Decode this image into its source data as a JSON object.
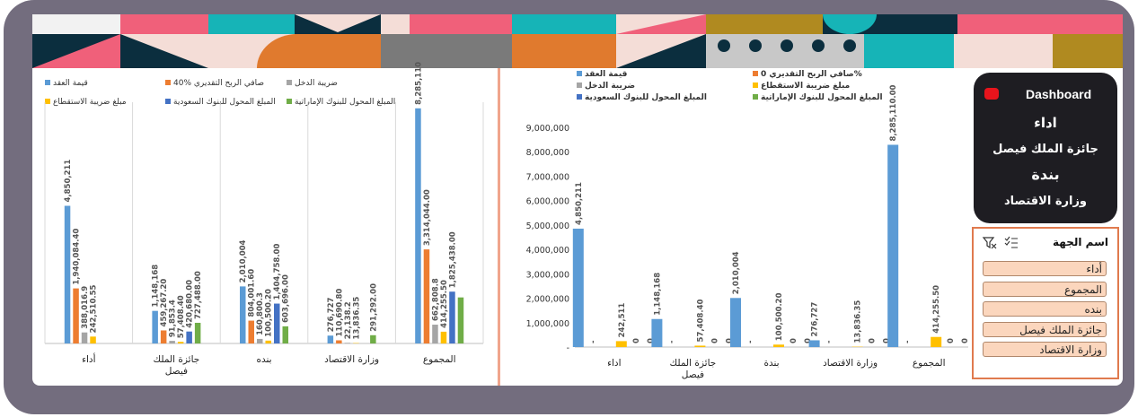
{
  "colors": {
    "frame": "#736d7e",
    "series": [
      "#5b9bd5",
      "#ed7d31",
      "#a5a5a5",
      "#ffc000",
      "#4472c4",
      "#70ad47"
    ],
    "dashboard_bg": "#1e1d22",
    "dashboard_dot": "#e8141c",
    "slicer_border": "#e07a4e",
    "slicer_item_bg": "#fbd6bd",
    "divider": "#f0a58c"
  },
  "dashboard": {
    "title": "Dashboard",
    "items": [
      "اداء",
      "جائزة الملك فيصل",
      "بندة",
      "وزارة الاقتصاد"
    ]
  },
  "slicer": {
    "title": "اسم الجهة",
    "items": [
      "أداء",
      "المجموع",
      "بنده",
      "جائزة الملك فيصل",
      "وزارة الاقتصاد"
    ]
  },
  "chart_data": [
    {
      "type": "bar",
      "categories": [
        "أداء",
        "جائزة الملك فيصل",
        "بنده",
        "وزارة الاقتصاد",
        "المجموع"
      ],
      "legend": [
        "قيمة العقد",
        "صافي الربح التقديري %40",
        "ضريبة الدخل",
        "مبلغ ضريبة الاستقطاع",
        "المبلغ المحول للبنوك السعودية",
        "المبلغ المحول للبنوك الإماراتية"
      ],
      "series": [
        {
          "name": "قيمة العقد",
          "values": [
            4850211,
            1148168,
            2010004,
            276727,
            8285110
          ],
          "labels": [
            "4,850,211",
            "1,148,168",
            "2,010,004",
            "276,727",
            "8,285,110"
          ]
        },
        {
          "name": "صافي الربح التقديري %40",
          "values": [
            1940084.4,
            459267.2,
            804001.6,
            110690.8,
            3314044
          ],
          "labels": [
            "1,940,084.40",
            "459,267.20",
            "804,001.60",
            "110,690.80",
            "3,314,044.00"
          ]
        },
        {
          "name": "ضريبة الدخل",
          "values": [
            388016.9,
            91853.4,
            160800.3,
            22138.2,
            662808.8
          ],
          "labels": [
            "388,016.9",
            "91,853.4",
            "160,800.3",
            "22,138.2",
            "662,808.8"
          ]
        },
        {
          "name": "مبلغ ضريبة الاستقطاع",
          "values": [
            242510.55,
            57408.4,
            100500.2,
            13836.35,
            414255.5
          ],
          "labels": [
            "242,510.55",
            "57,408.40",
            "100,500.20",
            "13,836.35",
            "414,255.50"
          ]
        },
        {
          "name": "المبلغ المحول للبنوك السعودية",
          "values": [
            0,
            420680,
            1404758,
            0,
            1825438
          ],
          "labels": [
            "",
            "420,680.00",
            "1,404,758.00",
            "",
            "1,825,438.00"
          ]
        },
        {
          "name": "المبلغ المحول للبنوك الإماراتية",
          "values": [
            0,
            727488,
            603696,
            291292,
            1622476
          ],
          "labels": [
            "",
            "727,488.00",
            "603,696.00",
            "291,292.00",
            ""
          ]
        }
      ],
      "ylim": [
        0,
        8500000
      ],
      "grid": false,
      "legend_position": "top"
    },
    {
      "type": "bar",
      "categories": [
        "اداء",
        "جائزة الملك فيصل",
        "بندة",
        "وزارة الاقتصاد",
        "المجموع"
      ],
      "legend": [
        "قيمة العقد",
        "صافي الربح التقديري 0%",
        "ضريبة الدخل",
        "مبلغ ضريبة الاستقطاع",
        "المبلغ المحول للبنوك السعودية",
        "المبلغ المحول للبنوك الإماراتية"
      ],
      "series": [
        {
          "name": "قيمة العقد",
          "values": [
            4850211,
            1148168,
            2010004,
            276727,
            8285110
          ],
          "labels": [
            "4,850,211",
            "1,148,168",
            "2,010,004",
            "276,727",
            "8,285,110.00"
          ]
        },
        {
          "name": "صافي الربح التقديري 0%",
          "values": [
            0,
            0,
            0,
            0,
            0
          ],
          "labels": [
            "-",
            "-",
            "-",
            "-",
            "-"
          ]
        },
        {
          "name": "ضريبة الدخل",
          "values": [
            0,
            0,
            0,
            0,
            0
          ],
          "labels": [
            "",
            "",
            "",
            "",
            ""
          ]
        },
        {
          "name": "مبلغ ضريبة الاستقطاع",
          "values": [
            242511,
            57408.4,
            100500.2,
            13836.35,
            414255.5
          ],
          "labels": [
            "242,511",
            "57,408.40",
            "100,500.20",
            "13,836.35",
            "414,255.50"
          ]
        },
        {
          "name": "المبلغ المحول للبنوك السعودية",
          "values": [
            0,
            0,
            0,
            0,
            0
          ],
          "labels": [
            "0",
            "0",
            "0",
            "0",
            "0"
          ]
        },
        {
          "name": "المبلغ المحول للبنوك الإماراتية",
          "values": [
            0,
            0,
            0,
            0,
            0
          ],
          "labels": [
            "0",
            "0",
            "0",
            "0",
            "0"
          ]
        }
      ],
      "yticks": [
        "-",
        "1,000,000",
        "2,000,000",
        "3,000,000",
        "4,000,000",
        "5,000,000",
        "6,000,000",
        "7,000,000",
        "8,000,000",
        "9,000,000"
      ],
      "ylim": [
        0,
        9000000
      ],
      "grid": false,
      "legend_position": "top"
    }
  ]
}
